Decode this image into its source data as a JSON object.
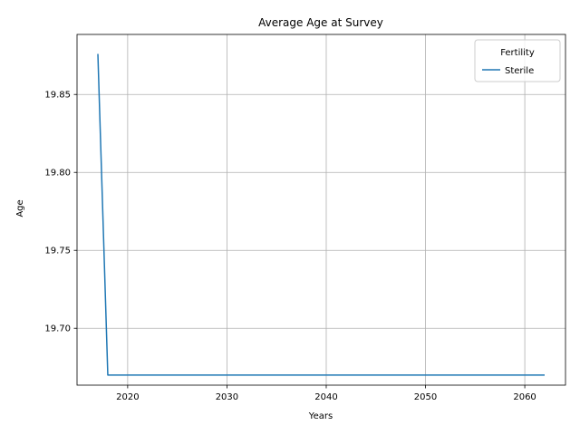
{
  "chart_data": {
    "type": "line",
    "title": "Average Age at Survey",
    "xlabel": "Years",
    "ylabel": "Age",
    "xlim": [
      2014.9,
      2064.1
    ],
    "ylim": [
      19.6635,
      19.8885
    ],
    "xticks": [
      2020,
      2030,
      2040,
      2050,
      2060
    ],
    "xtick_labels": [
      "2020",
      "2030",
      "2040",
      "2050",
      "2060"
    ],
    "yticks": [
      19.7,
      19.75,
      19.8,
      19.85
    ],
    "ytick_labels": [
      "19.70",
      "19.75",
      "19.80",
      "19.85"
    ],
    "grid": true,
    "legend": {
      "title": "Fertility",
      "placement": "top-right"
    },
    "x": [
      2017,
      2018,
      2019,
      2020,
      2021,
      2022,
      2023,
      2024,
      2025,
      2026,
      2027,
      2028,
      2029,
      2030,
      2031,
      2032,
      2033,
      2034,
      2035,
      2036,
      2037,
      2038,
      2039,
      2040,
      2041,
      2042,
      2043,
      2044,
      2045,
      2046,
      2047,
      2048,
      2049,
      2050,
      2051,
      2052,
      2053,
      2054,
      2055,
      2056,
      2057,
      2058,
      2059,
      2060,
      2061,
      2062
    ],
    "series": [
      {
        "name": "Sterile",
        "color": "#1f77b4",
        "values": [
          19.876,
          19.67,
          19.67,
          19.67,
          19.67,
          19.67,
          19.67,
          19.67,
          19.67,
          19.67,
          19.67,
          19.67,
          19.67,
          19.67,
          19.67,
          19.67,
          19.67,
          19.67,
          19.67,
          19.67,
          19.67,
          19.67,
          19.67,
          19.67,
          19.67,
          19.67,
          19.67,
          19.67,
          19.67,
          19.67,
          19.67,
          19.67,
          19.67,
          19.67,
          19.67,
          19.67,
          19.67,
          19.67,
          19.67,
          19.67,
          19.67,
          19.67,
          19.67,
          19.67,
          19.67,
          19.67
        ]
      }
    ]
  }
}
